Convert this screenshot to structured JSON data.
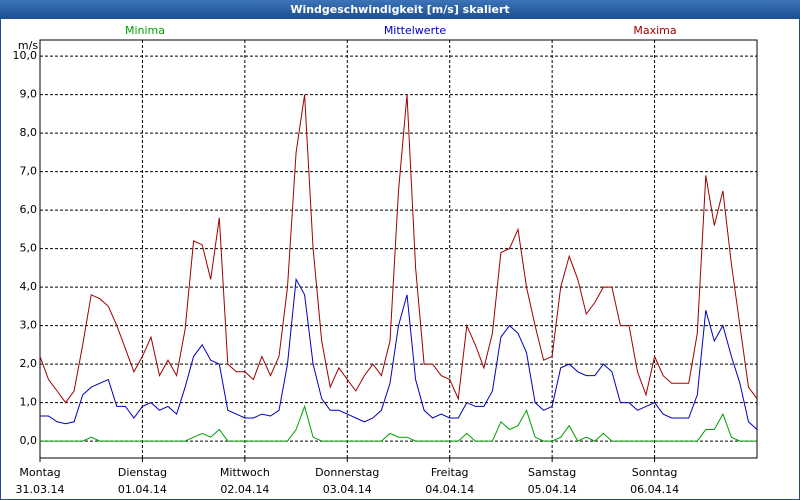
{
  "chart_data": {
    "type": "line",
    "title": "Windgeschwindigkeit [m/s] skaliert",
    "y_unit": "m/s",
    "categories": [
      "31.03.14",
      null,
      null,
      null,
      null,
      null,
      null,
      null,
      null,
      null,
      null,
      null,
      "01.04.14",
      null,
      null,
      null,
      null,
      null,
      null,
      null,
      null,
      null,
      null,
      null,
      "02.04.14",
      null,
      null,
      null,
      null,
      null,
      null,
      null,
      null,
      null,
      null,
      null,
      "03.04.14",
      null,
      null,
      null,
      null,
      null,
      null,
      null,
      null,
      null,
      null,
      null,
      "04.04.14",
      null,
      null,
      null,
      null,
      null,
      null,
      null,
      null,
      null,
      null,
      null,
      "05.04.14",
      null,
      null,
      null,
      null,
      null,
      null,
      null,
      null,
      null,
      null,
      null,
      "06.04.14",
      null,
      null,
      null,
      null,
      null,
      null,
      null,
      null,
      null,
      null,
      null,
      null
    ],
    "weekdays": [
      "Montag",
      "Dienstag",
      "Mittwoch",
      "Donnerstag",
      "Freitag",
      "Samstag",
      "Sonntag"
    ],
    "series": [
      {
        "name": "Minima",
        "color": "#00a000",
        "values": [
          0,
          0,
          0,
          0,
          0,
          0,
          0.1,
          0,
          0,
          0,
          0,
          0,
          0,
          0,
          0,
          0,
          0,
          0,
          0.1,
          0.2,
          0.1,
          0.3,
          0,
          0,
          0,
          0,
          0,
          0,
          0,
          0,
          0.3,
          0.9,
          0.1,
          0,
          0,
          0,
          0,
          0,
          0,
          0,
          0,
          0.2,
          0.1,
          0.1,
          0,
          0,
          0,
          0,
          0,
          0,
          0.2,
          0,
          0,
          0,
          0.5,
          0.3,
          0.4,
          0.8,
          0.1,
          0,
          0,
          0.1,
          0.4,
          0,
          0.1,
          0,
          0.2,
          0,
          0,
          0,
          0,
          0,
          0,
          0,
          0,
          0,
          0,
          0,
          0.3,
          0.3,
          0.7,
          0.1,
          0,
          0,
          0
        ]
      },
      {
        "name": "Mittelwerte",
        "color": "#0000c0",
        "values": [
          0.65,
          0.65,
          0.5,
          0.45,
          0.5,
          1.2,
          1.4,
          1.5,
          1.6,
          0.9,
          0.9,
          0.6,
          0.9,
          1.0,
          0.8,
          0.9,
          0.7,
          1.4,
          2.2,
          2.5,
          2.1,
          2.0,
          0.8,
          0.7,
          0.6,
          0.6,
          0.7,
          0.65,
          0.8,
          2.0,
          4.2,
          3.8,
          2.0,
          1.1,
          0.8,
          0.8,
          0.7,
          0.6,
          0.5,
          0.6,
          0.8,
          1.5,
          3.0,
          3.8,
          1.6,
          0.8,
          0.6,
          0.7,
          0.6,
          0.6,
          1.0,
          0.9,
          0.9,
          1.3,
          2.7,
          3.0,
          2.8,
          2.3,
          1.0,
          0.8,
          0.9,
          1.9,
          2.0,
          1.8,
          1.7,
          1.7,
          2.0,
          1.8,
          1.0,
          1.0,
          0.8,
          0.9,
          1.0,
          0.7,
          0.6,
          0.6,
          0.6,
          1.2,
          3.4,
          2.6,
          3.0,
          2.2,
          1.5,
          0.5,
          0.3
        ]
      },
      {
        "name": "Maxima",
        "color": "#a00000",
        "values": [
          2.2,
          1.6,
          1.3,
          1.0,
          1.3,
          2.5,
          3.8,
          3.7,
          3.5,
          3.0,
          2.4,
          1.8,
          2.2,
          2.7,
          1.7,
          2.1,
          1.7,
          2.9,
          5.2,
          5.1,
          4.2,
          5.8,
          2.0,
          1.8,
          1.8,
          1.6,
          2.2,
          1.7,
          2.2,
          4.0,
          7.5,
          9.0,
          5.0,
          2.6,
          1.4,
          1.9,
          1.6,
          1.3,
          1.7,
          2.0,
          1.7,
          2.6,
          6.5,
          9.0,
          4.5,
          2.0,
          2.0,
          1.7,
          1.6,
          1.1,
          3.0,
          2.5,
          1.9,
          2.8,
          4.9,
          5.0,
          5.5,
          4.0,
          3.0,
          2.1,
          2.2,
          4.0,
          4.8,
          4.2,
          3.3,
          3.6,
          4.0,
          4.0,
          3.0,
          3.0,
          1.8,
          1.2,
          2.2,
          1.7,
          1.5,
          1.5,
          1.5,
          2.8,
          6.9,
          5.6,
          6.5,
          4.6,
          3.0,
          1.4,
          1.1
        ]
      }
    ],
    "ylim": [
      -0.44,
      10.42
    ],
    "yticks": [
      {
        "value": 0,
        "label": "0,0"
      },
      {
        "value": 1,
        "label": "1,0"
      },
      {
        "value": 2,
        "label": "2,0"
      },
      {
        "value": 3,
        "label": "3,0"
      },
      {
        "value": 4,
        "label": "4,0"
      },
      {
        "value": 5,
        "label": "5,0"
      },
      {
        "value": 6,
        "label": "6,0"
      },
      {
        "value": 7,
        "label": "7,0"
      },
      {
        "value": 8,
        "label": "8,0"
      },
      {
        "value": 9,
        "label": "9,0"
      },
      {
        "value": 10,
        "label": "10,0"
      }
    ],
    "grid": true
  }
}
